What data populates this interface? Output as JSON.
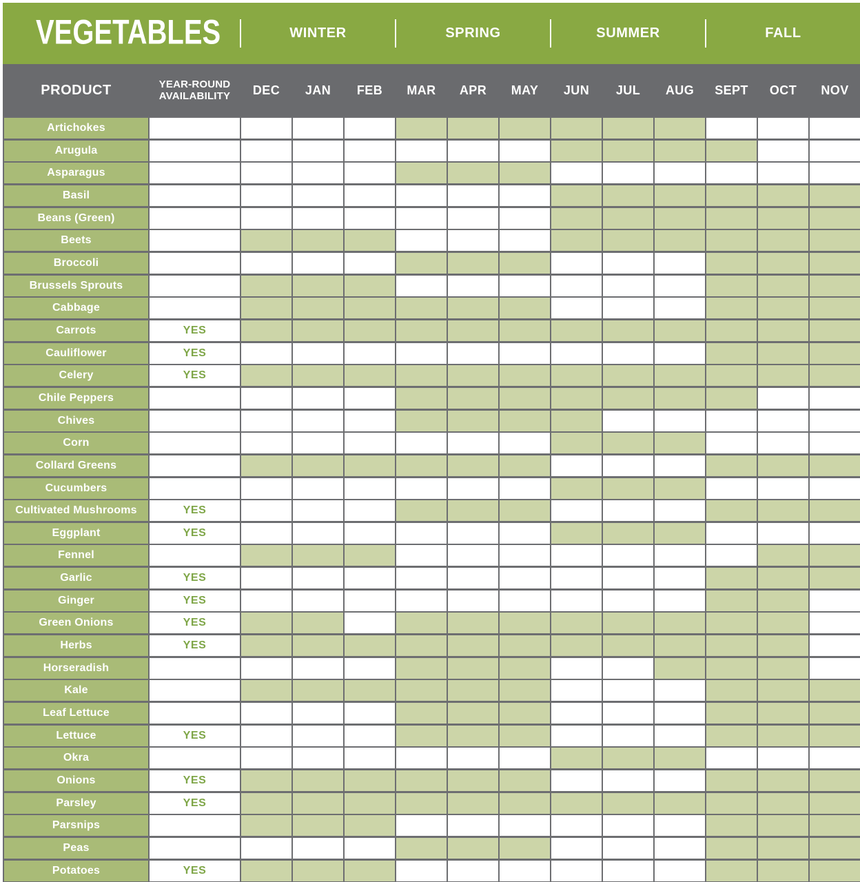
{
  "title": "VEGETABLES",
  "yes_label": "YES",
  "header": {
    "product": "PRODUCT",
    "availability_line1": "YEAR-ROUND",
    "availability_line2": "AVAILABILITY"
  },
  "seasons": [
    {
      "label": "WINTER",
      "months": [
        "DEC",
        "JAN",
        "FEB"
      ]
    },
    {
      "label": "SPRING",
      "months": [
        "MAR",
        "APR",
        "MAY"
      ]
    },
    {
      "label": "SUMMER",
      "months": [
        "JUN",
        "JUL",
        "AUG"
      ]
    },
    {
      "label": "FALL",
      "months": [
        "SEPT",
        "OCT",
        "NOV"
      ]
    }
  ],
  "months": [
    "DEC",
    "JAN",
    "FEB",
    "MAR",
    "APR",
    "MAY",
    "JUN",
    "JUL",
    "AUG",
    "SEPT",
    "OCT",
    "NOV"
  ],
  "colors": {
    "header_green": "#89A943",
    "product_cell_green": "#A9BB77",
    "shaded_cell_green": "#CCD5A8",
    "dark_gray": "#6A6B6E",
    "grid_gray": "#6D6E71",
    "yes_text_green": "#7FA648",
    "white": "#FFFFFF"
  },
  "chart_data": {
    "type": "heatmap",
    "title": "VEGETABLES",
    "columns": [
      "DEC",
      "JAN",
      "FEB",
      "MAR",
      "APR",
      "MAY",
      "JUN",
      "JUL",
      "AUG",
      "SEPT",
      "OCT",
      "NOV"
    ],
    "legend": "1 = available that month (shaded cell), 0 = not available",
    "rows": [
      {
        "product": "Artichokes",
        "year_round": false,
        "availability": [
          0,
          0,
          0,
          1,
          1,
          1,
          1,
          1,
          1,
          0,
          0,
          0
        ]
      },
      {
        "product": "Arugula",
        "year_round": false,
        "availability": [
          0,
          0,
          0,
          0,
          0,
          0,
          1,
          1,
          1,
          1,
          0,
          0
        ]
      },
      {
        "product": "Asparagus",
        "year_round": false,
        "availability": [
          0,
          0,
          0,
          1,
          1,
          1,
          0,
          0,
          0,
          0,
          0,
          0
        ]
      },
      {
        "product": "Basil",
        "year_round": false,
        "availability": [
          0,
          0,
          0,
          0,
          0,
          0,
          1,
          1,
          1,
          1,
          1,
          1
        ]
      },
      {
        "product": "Beans (Green)",
        "year_round": false,
        "availability": [
          0,
          0,
          0,
          0,
          0,
          0,
          1,
          1,
          1,
          1,
          1,
          1
        ]
      },
      {
        "product": "Beets",
        "year_round": false,
        "availability": [
          1,
          1,
          1,
          0,
          0,
          0,
          1,
          1,
          1,
          1,
          1,
          1
        ]
      },
      {
        "product": "Broccoli",
        "year_round": false,
        "availability": [
          0,
          0,
          0,
          1,
          1,
          1,
          0,
          0,
          0,
          1,
          1,
          1
        ]
      },
      {
        "product": "Brussels Sprouts",
        "year_round": false,
        "availability": [
          1,
          1,
          1,
          0,
          0,
          0,
          0,
          0,
          0,
          1,
          1,
          1
        ]
      },
      {
        "product": "Cabbage",
        "year_round": false,
        "availability": [
          1,
          1,
          1,
          1,
          1,
          1,
          0,
          0,
          0,
          1,
          1,
          1
        ]
      },
      {
        "product": "Carrots",
        "year_round": true,
        "availability": [
          1,
          1,
          1,
          1,
          1,
          1,
          1,
          1,
          1,
          1,
          1,
          1
        ]
      },
      {
        "product": "Cauliflower",
        "year_round": true,
        "availability": [
          0,
          0,
          0,
          0,
          0,
          0,
          0,
          0,
          0,
          1,
          1,
          1
        ]
      },
      {
        "product": "Celery",
        "year_round": true,
        "availability": [
          1,
          1,
          1,
          1,
          1,
          1,
          1,
          1,
          1,
          1,
          1,
          1
        ]
      },
      {
        "product": "Chile Peppers",
        "year_round": false,
        "availability": [
          0,
          0,
          0,
          1,
          1,
          1,
          1,
          1,
          1,
          1,
          0,
          0
        ]
      },
      {
        "product": "Chives",
        "year_round": false,
        "availability": [
          0,
          0,
          0,
          1,
          1,
          1,
          1,
          0,
          0,
          0,
          0,
          0
        ]
      },
      {
        "product": "Corn",
        "year_round": false,
        "availability": [
          0,
          0,
          0,
          0,
          0,
          0,
          1,
          1,
          1,
          0,
          0,
          0
        ]
      },
      {
        "product": "Collard Greens",
        "year_round": false,
        "availability": [
          1,
          1,
          1,
          1,
          1,
          1,
          0,
          0,
          0,
          1,
          1,
          1
        ]
      },
      {
        "product": "Cucumbers",
        "year_round": false,
        "availability": [
          0,
          0,
          0,
          0,
          0,
          0,
          1,
          1,
          1,
          0,
          0,
          0
        ]
      },
      {
        "product": "Cultivated Mushrooms",
        "year_round": true,
        "availability": [
          0,
          0,
          0,
          1,
          1,
          1,
          0,
          0,
          0,
          1,
          1,
          1
        ]
      },
      {
        "product": "Eggplant",
        "year_round": true,
        "availability": [
          0,
          0,
          0,
          0,
          0,
          0,
          1,
          1,
          1,
          0,
          0,
          0
        ]
      },
      {
        "product": "Fennel",
        "year_round": false,
        "availability": [
          1,
          1,
          1,
          0,
          0,
          0,
          0,
          0,
          0,
          0,
          1,
          1
        ]
      },
      {
        "product": "Garlic",
        "year_round": true,
        "availability": [
          0,
          0,
          0,
          0,
          0,
          0,
          0,
          0,
          0,
          1,
          1,
          1
        ]
      },
      {
        "product": "Ginger",
        "year_round": true,
        "availability": [
          0,
          0,
          0,
          0,
          0,
          0,
          0,
          0,
          0,
          1,
          1,
          0
        ]
      },
      {
        "product": "Green Onions",
        "year_round": true,
        "availability": [
          1,
          1,
          0,
          1,
          1,
          1,
          1,
          1,
          1,
          1,
          1,
          0
        ]
      },
      {
        "product": "Herbs",
        "year_round": true,
        "availability": [
          1,
          1,
          1,
          1,
          1,
          1,
          1,
          1,
          1,
          1,
          1,
          0
        ]
      },
      {
        "product": "Horseradish",
        "year_round": false,
        "availability": [
          0,
          0,
          0,
          1,
          1,
          1,
          0,
          0,
          1,
          1,
          1,
          0
        ]
      },
      {
        "product": "Kale",
        "year_round": false,
        "availability": [
          1,
          1,
          1,
          1,
          1,
          1,
          0,
          0,
          0,
          1,
          1,
          1
        ]
      },
      {
        "product": "Leaf Lettuce",
        "year_round": false,
        "availability": [
          0,
          0,
          0,
          1,
          1,
          1,
          0,
          0,
          0,
          1,
          1,
          1
        ]
      },
      {
        "product": "Lettuce",
        "year_round": true,
        "availability": [
          0,
          0,
          0,
          1,
          1,
          1,
          0,
          0,
          0,
          1,
          1,
          1
        ]
      },
      {
        "product": "Okra",
        "year_round": false,
        "availability": [
          0,
          0,
          0,
          0,
          0,
          0,
          1,
          1,
          1,
          0,
          0,
          0
        ]
      },
      {
        "product": "Onions",
        "year_round": true,
        "availability": [
          1,
          1,
          1,
          1,
          1,
          1,
          0,
          0,
          0,
          1,
          1,
          1
        ]
      },
      {
        "product": "Parsley",
        "year_round": true,
        "availability": [
          1,
          1,
          1,
          1,
          1,
          1,
          1,
          1,
          1,
          1,
          1,
          1
        ]
      },
      {
        "product": "Parsnips",
        "year_round": false,
        "availability": [
          1,
          1,
          1,
          0,
          0,
          0,
          0,
          0,
          0,
          1,
          1,
          1
        ]
      },
      {
        "product": "Peas",
        "year_round": false,
        "availability": [
          0,
          0,
          0,
          1,
          1,
          1,
          0,
          0,
          0,
          1,
          1,
          1
        ]
      },
      {
        "product": "Potatoes",
        "year_round": true,
        "availability": [
          1,
          1,
          1,
          0,
          0,
          0,
          0,
          0,
          0,
          1,
          1,
          1
        ]
      }
    ]
  }
}
